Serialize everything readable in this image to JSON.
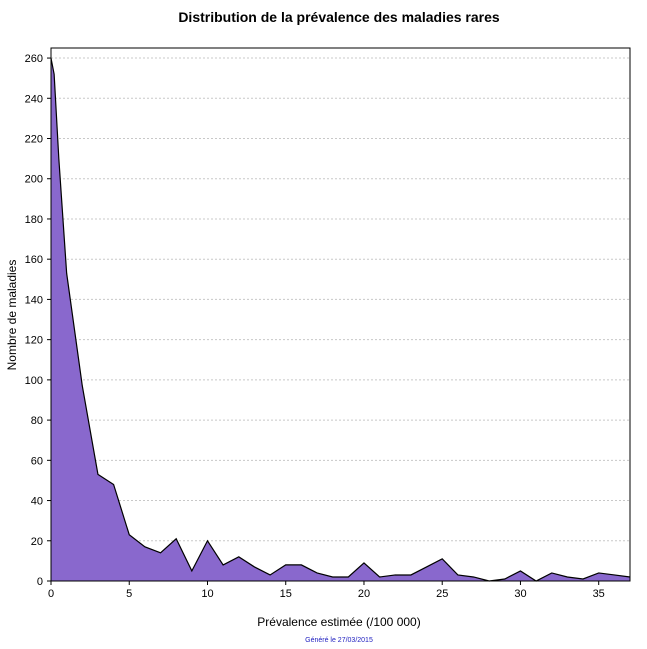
{
  "chart_data": {
    "type": "area",
    "title": "Distribution de la prévalence des maladies rares",
    "xlabel": "Prévalence estimée (/100 000)",
    "ylabel": "Nombre de maladies",
    "footnote": "Généré le 27/03/2015",
    "x": [
      0,
      0.2,
      0.5,
      1,
      2,
      3,
      4,
      5,
      6,
      7,
      8,
      9,
      10,
      11,
      12,
      13,
      14,
      15,
      16,
      17,
      18,
      19,
      20,
      21,
      22,
      23,
      24,
      25,
      26,
      27,
      28,
      29,
      30,
      31,
      32,
      33,
      34,
      35,
      36,
      37
    ],
    "values": [
      260,
      252,
      210,
      153,
      97,
      53,
      48,
      23,
      17,
      14,
      21,
      5,
      20,
      8,
      12,
      7,
      3,
      8,
      8,
      4,
      2,
      2,
      9,
      2,
      3,
      3,
      7,
      11,
      3,
      2,
      0,
      1,
      5,
      0,
      4,
      2,
      1,
      4,
      3,
      2
    ],
    "xlim": [
      0,
      37
    ],
    "ylim": [
      0,
      265
    ],
    "x_ticks": [
      0,
      5,
      10,
      15,
      20,
      25,
      30,
      35
    ],
    "y_ticks": [
      0,
      20,
      40,
      60,
      80,
      100,
      120,
      140,
      160,
      180,
      200,
      220,
      240,
      260
    ],
    "grid": true,
    "fill_color": "#8968cd",
    "line_color": "#000000",
    "grid_color": "#c8c8c8"
  }
}
